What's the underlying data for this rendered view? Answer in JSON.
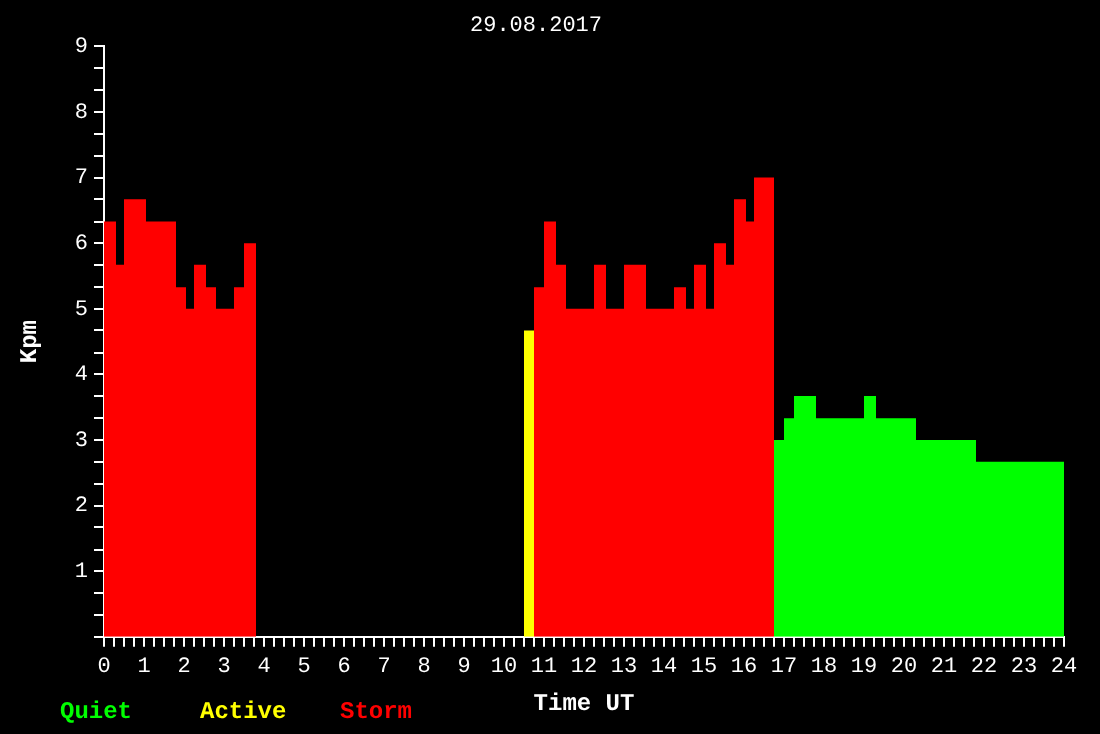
{
  "chart_data": {
    "type": "area",
    "title": "29.08.2017",
    "xlabel": "Time UT",
    "ylabel": "Kpm",
    "marker": "none",
    "grid": false,
    "series": [
      {
        "name": "Quiet",
        "color": "#00ff00",
        "x": [
          16.75,
          17.0,
          17.0,
          17.25,
          17.25,
          17.8,
          17.8,
          19.0,
          19.0,
          19.3,
          19.3,
          20.3,
          20.3,
          21.8,
          21.8,
          24
        ],
        "values": [
          3.0,
          3.0,
          3.33,
          3.33,
          3.67,
          3.67,
          3.33,
          3.33,
          3.67,
          3.67,
          3.33,
          3.33,
          3.0,
          3.0,
          2.67,
          2.67
        ]
      },
      {
        "name": "Active",
        "color": "#ffff00",
        "x": [
          10.5,
          10.75
        ],
        "values": [
          4.67,
          4.67
        ]
      },
      {
        "name": "Storm",
        "color": "#ff0000",
        "x": [
          0,
          0.3,
          0.3,
          0.5,
          0.5,
          1.05,
          1.05,
          1.8,
          1.8,
          2.05,
          2.05,
          2.25,
          2.25,
          2.55,
          2.55,
          2.8,
          2.8,
          3.25,
          3.25,
          3.5,
          3.5,
          3.8
        ],
        "values": [
          6.33,
          6.33,
          5.67,
          5.67,
          6.67,
          6.67,
          6.33,
          6.33,
          5.33,
          5.33,
          5.0,
          5.0,
          5.67,
          5.67,
          5.33,
          5.33,
          5.0,
          5.0,
          5.33,
          5.33,
          6.0,
          6.0
        ]
      },
      {
        "color": "#ff0000",
        "x": [
          10.75,
          11.0,
          11.0,
          11.3,
          11.3,
          11.55,
          11.55,
          12.25,
          12.25,
          12.55,
          12.55,
          13.0,
          13.0,
          13.55,
          13.55,
          14.25,
          14.25,
          14.55,
          14.55,
          14.75,
          14.75,
          15.05,
          15.05,
          15.25,
          15.25,
          15.55,
          15.55,
          15.75,
          15.75,
          16.05,
          16.05,
          16.25,
          16.25,
          16.75
        ],
        "values": [
          5.33,
          5.33,
          6.33,
          6.33,
          5.67,
          5.67,
          5.0,
          5.0,
          5.67,
          5.67,
          5.0,
          5.0,
          5.67,
          5.67,
          5.0,
          5.0,
          5.33,
          5.33,
          5.0,
          5.0,
          5.67,
          5.67,
          5.0,
          5.0,
          6.0,
          6.0,
          5.67,
          5.67,
          6.67,
          6.67,
          6.33,
          6.33,
          7.0,
          7.0
        ]
      }
    ],
    "xlim": [
      0,
      24
    ],
    "xticks": [
      0,
      {
        "value": 0.25,
        "label": null
      },
      {
        "value": 0.5,
        "label": null
      },
      {
        "value": 0.75,
        "label": null
      },
      1,
      {
        "value": 1.25,
        "label": null
      },
      {
        "value": 1.5,
        "label": null
      },
      {
        "value": 1.75,
        "label": null
      },
      2,
      {
        "value": 2.25,
        "label": null
      },
      {
        "value": 2.5,
        "label": null
      },
      {
        "value": 2.75,
        "label": null
      },
      3,
      {
        "value": 3.25,
        "label": null
      },
      {
        "value": 3.5,
        "label": null
      },
      {
        "value": 3.75,
        "label": null
      },
      4,
      {
        "value": 4.25,
        "label": null
      },
      {
        "value": 4.5,
        "label": null
      },
      {
        "value": 4.75,
        "label": null
      },
      5,
      {
        "value": 5.25,
        "label": null
      },
      {
        "value": 5.5,
        "label": null
      },
      {
        "value": 5.75,
        "label": null
      },
      6,
      {
        "value": 6.25,
        "label": null
      },
      {
        "value": 6.5,
        "label": null
      },
      {
        "value": 6.75,
        "label": null
      },
      7,
      {
        "value": 7.25,
        "label": null
      },
      {
        "value": 7.5,
        "label": null
      },
      {
        "value": 7.75,
        "label": null
      },
      8,
      {
        "value": 8.25,
        "label": null
      },
      {
        "value": 8.5,
        "label": null
      },
      {
        "value": 8.75,
        "label": null
      },
      9,
      {
        "value": 9.25,
        "label": null
      },
      {
        "value": 9.5,
        "label": null
      },
      {
        "value": 9.75,
        "label": null
      },
      10,
      {
        "value": 10.25,
        "label": null
      },
      {
        "value": 10.5,
        "label": null
      },
      {
        "value": 10.75,
        "label": null
      },
      11,
      {
        "value": 11.25,
        "label": null
      },
      {
        "value": 11.5,
        "label": null
      },
      {
        "value": 11.75,
        "label": null
      },
      12,
      {
        "value": 12.25,
        "label": null
      },
      {
        "value": 12.5,
        "label": null
      },
      {
        "value": 12.75,
        "label": null
      },
      13,
      {
        "value": 13.25,
        "label": null
      },
      {
        "value": 13.5,
        "label": null
      },
      {
        "value": 13.75,
        "label": null
      },
      14,
      {
        "value": 14.25,
        "label": null
      },
      {
        "value": 14.5,
        "label": null
      },
      {
        "value": 14.75,
        "label": null
      },
      15,
      {
        "value": 15.25,
        "label": null
      },
      {
        "value": 15.5,
        "label": null
      },
      {
        "value": 15.75,
        "label": null
      },
      16,
      {
        "value": 16.25,
        "label": null
      },
      {
        "value": 16.5,
        "label": null
      },
      {
        "value": 16.75,
        "label": null
      },
      17,
      {
        "value": 17.25,
        "label": null
      },
      {
        "value": 17.5,
        "label": null
      },
      {
        "value": 17.75,
        "label": null
      },
      18,
      {
        "value": 18.25,
        "label": null
      },
      {
        "value": 18.5,
        "label": null
      },
      {
        "value": 18.75,
        "label": null
      },
      19,
      {
        "value": 19.25,
        "label": null
      },
      {
        "value": 19.5,
        "label": null
      },
      {
        "value": 19.75,
        "label": null
      },
      20,
      {
        "value": 20.25,
        "label": null
      },
      {
        "value": 20.5,
        "label": null
      },
      {
        "value": 20.75,
        "label": null
      },
      21,
      {
        "value": 21.25,
        "label": null
      },
      {
        "value": 21.5,
        "label": null
      },
      {
        "value": 21.75,
        "label": null
      },
      22,
      {
        "value": 22.25,
        "label": null
      },
      {
        "value": 22.5,
        "label": null
      },
      {
        "value": 22.75,
        "label": null
      },
      23,
      {
        "value": 23.25,
        "label": null
      },
      {
        "value": 23.5,
        "label": null
      },
      {
        "value": 23.75,
        "label": null
      },
      24
    ],
    "ylim": [
      0,
      9
    ],
    "yticks": [
      {
        "value": 0,
        "label": null
      },
      {
        "value": 0.33,
        "label": null
      },
      {
        "value": 0.67,
        "label": null
      },
      1,
      {
        "value": 1.33,
        "label": null
      },
      {
        "value": 1.67,
        "label": null
      },
      2,
      {
        "value": 2.33,
        "label": null
      },
      {
        "value": 2.67,
        "label": null
      },
      3,
      {
        "value": 3.33,
        "label": null
      },
      {
        "value": 3.67,
        "label": null
      },
      4,
      {
        "value": 4.33,
        "label": null
      },
      {
        "value": 4.67,
        "label": null
      },
      5,
      {
        "value": 5.33,
        "label": null
      },
      {
        "value": 5.67,
        "label": null
      },
      6,
      {
        "value": 6.33,
        "label": null
      },
      {
        "value": 6.67,
        "label": null
      },
      7,
      {
        "value": 7.33,
        "label": null
      },
      {
        "value": 7.67,
        "label": null
      },
      8,
      {
        "value": 8.33,
        "label": null
      },
      {
        "value": 8.67,
        "label": null
      },
      9
    ]
  }
}
